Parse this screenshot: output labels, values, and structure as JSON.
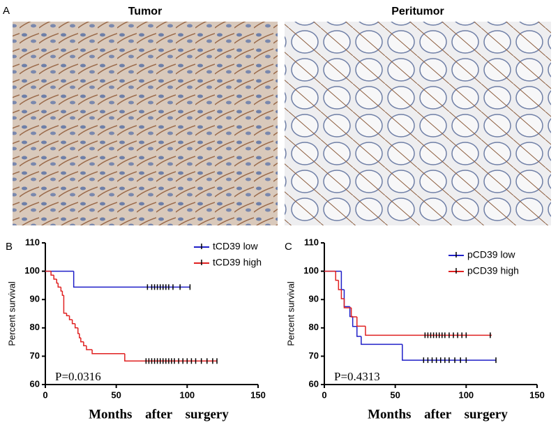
{
  "figure": {
    "panel_label": "A",
    "images": [
      {
        "title": "Tumor"
      },
      {
        "title": "Peritumor"
      }
    ]
  },
  "chart_data": [
    {
      "type": "step",
      "panel_label": "B",
      "ylabel": "Percent survival",
      "xlabel": "Months after surgery",
      "annotation": "P=0.0316",
      "xlim": [
        0,
        150
      ],
      "xticks": [
        0,
        50,
        100,
        150
      ],
      "ylim": [
        60,
        110
      ],
      "yticks": [
        60,
        70,
        80,
        90,
        100,
        110
      ],
      "legend": "upper right",
      "series": [
        {
          "name": "tCD39 low",
          "color": "#1f1fc8",
          "x": [
            0,
            20,
            102
          ],
          "values": [
            100,
            94.4,
            94.4
          ],
          "censored": [
            72,
            75,
            77,
            79,
            81,
            83,
            85,
            87,
            90,
            95,
            102
          ]
        },
        {
          "name": "tCD39 high",
          "color": "#e02020",
          "x": [
            0,
            4,
            6,
            8,
            9,
            11,
            12,
            13,
            15,
            17,
            19,
            21,
            23,
            24,
            25,
            27,
            29,
            33,
            56,
            121
          ],
          "values": [
            100,
            98.6,
            97.2,
            95.8,
            94.4,
            93,
            91.5,
            85.2,
            84.3,
            82.9,
            81.5,
            80,
            78,
            76.5,
            75.1,
            73.7,
            72.3,
            70.9,
            68.3,
            68.3
          ],
          "censored": [
            71,
            73,
            75,
            77,
            79,
            81,
            83,
            85,
            87,
            89,
            91,
            94,
            97,
            100,
            103,
            106,
            110,
            114,
            118,
            121
          ]
        }
      ]
    },
    {
      "type": "step",
      "panel_label": "C",
      "ylabel": "Percent survival",
      "xlabel": "Months after surgery",
      "annotation": "P=0.4313",
      "xlim": [
        0,
        150
      ],
      "xticks": [
        0,
        50,
        100,
        150
      ],
      "ylim": [
        60,
        110
      ],
      "yticks": [
        60,
        70,
        80,
        90,
        100,
        110
      ],
      "legend": "upper right",
      "series": [
        {
          "name": "pCD39 low",
          "color": "#1f1fc8",
          "x": [
            0,
            12,
            14,
            18,
            20,
            23,
            26,
            55,
            121
          ],
          "values": [
            100,
            93.5,
            87.5,
            84,
            80.5,
            77,
            74.2,
            68.6,
            68.6
          ],
          "censored": [
            70,
            73,
            76,
            79,
            82,
            85,
            88,
            92,
            96,
            100,
            121
          ]
        },
        {
          "name": "pCD39 high",
          "color": "#e02020",
          "x": [
            0,
            8,
            10,
            12,
            14,
            19,
            23,
            29,
            118
          ],
          "values": [
            100,
            96.8,
            93.5,
            90.3,
            87.1,
            83.9,
            80.6,
            77.4,
            77.4
          ],
          "censored": [
            71,
            73,
            75,
            77,
            79,
            81,
            83,
            85,
            88,
            91,
            94,
            97,
            100,
            117
          ]
        }
      ]
    }
  ]
}
